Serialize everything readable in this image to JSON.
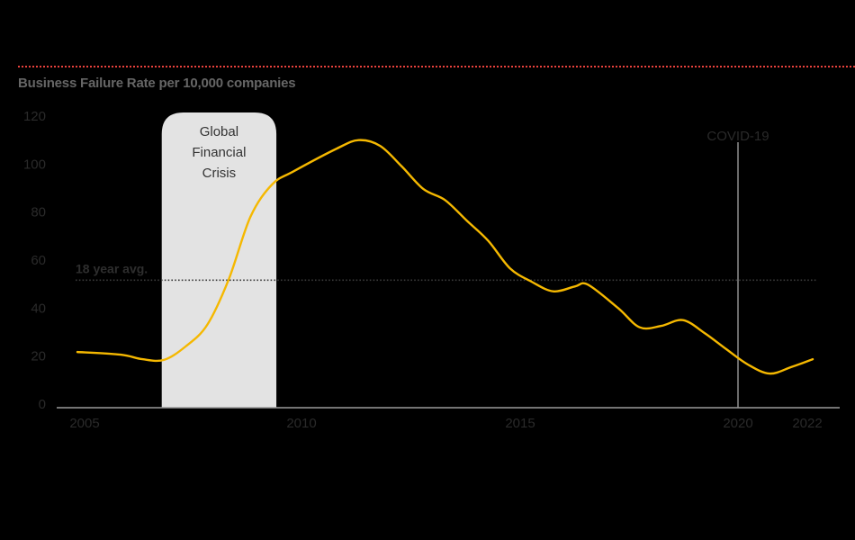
{
  "header": {
    "title": "Business Failure Rate per 10,000 companies",
    "rule_color": "#e8413c"
  },
  "colors": {
    "line": "#f5b800",
    "axis": "#9a9a9a",
    "gfc_band": "#e3e3e3",
    "background": "#000000"
  },
  "annotations": {
    "gfc": {
      "lines": [
        "Global",
        "Financial",
        "Crisis"
      ],
      "start": 2006.95,
      "end": 2009.6
    },
    "covid": {
      "label": "COVID-19",
      "x": 2020.25
    },
    "average": {
      "label": "18 year avg.",
      "value": 52
    }
  },
  "chart_data": {
    "type": "line",
    "title": "Business Failure Rate per 10,000 companies",
    "xlabel": "",
    "ylabel": "",
    "ylim": [
      0,
      120
    ],
    "xlim": [
      2004.5,
      2023.6
    ],
    "grid": false,
    "legend": null,
    "yticks": [
      0,
      20,
      40,
      60,
      80,
      100,
      120
    ],
    "xticks": [
      {
        "value": 2005,
        "label": "2005"
      },
      {
        "value": 2010,
        "label": "2010"
      },
      {
        "value": 2015,
        "label": "2015"
      },
      {
        "value": 2020,
        "label": "2020"
      },
      {
        "value": 2021.8,
        "label": "2022"
      }
    ],
    "series": [
      {
        "name": "Business Failure Rate",
        "x": [
          2005,
          2006,
          2006.5,
          2007,
          2007.5,
          2008,
          2008.5,
          2009,
          2009.5,
          2010,
          2011,
          2011.5,
          2012,
          2012.5,
          2013,
          2013.5,
          2014,
          2014.5,
          2015,
          2015.5,
          2016,
          2016.5,
          2016.8,
          2017.5,
          2018,
          2018.5,
          2019,
          2019.5,
          2020,
          2020.5,
          2021,
          2021.5,
          2022
        ],
        "values": [
          21.7,
          20.6,
          18.7,
          18.4,
          24,
          33,
          52,
          78,
          91.5,
          97,
          106.5,
          110,
          107.6,
          99,
          89.6,
          85,
          76.5,
          68,
          56.6,
          51,
          47,
          49,
          49.8,
          40,
          32,
          32.6,
          35,
          29.6,
          22.9,
          16.5,
          12.7,
          15.4,
          18.7
        ]
      }
    ],
    "annotations": [
      {
        "type": "band",
        "label": "Global Financial Crisis",
        "from": 2006.95,
        "to": 2009.6
      },
      {
        "type": "vline",
        "label": "COVID-19",
        "x": 2020.25
      },
      {
        "type": "hline",
        "label": "18 year avg.",
        "y": 52
      }
    ]
  }
}
